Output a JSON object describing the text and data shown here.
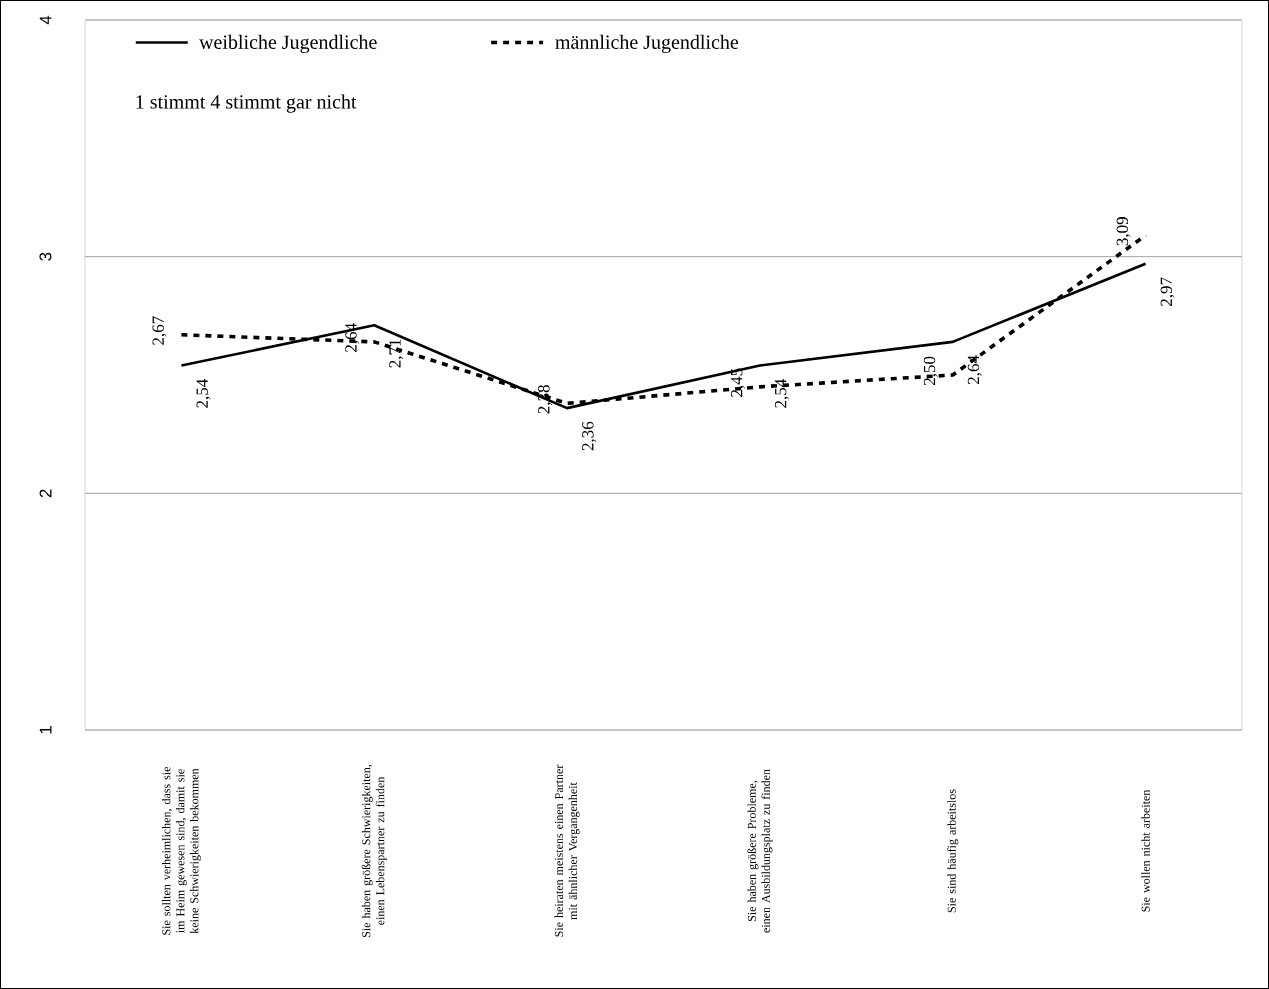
{
  "chart_data": {
    "type": "line",
    "categories": [
      "Sie sollten verheimlichen, dass sie im Heim gewesen sind, damit sie keine Schwierigkeiten bekommen",
      "Sie haben größere Schwierigkeiten, einen Lebenspartner zu finden",
      "Sie heiraten meistens einen Partner mit ähnlicher Vergangenheit",
      "Sie haben größere Probleme, einen Ausbildungsplatz zu finden",
      "Sie sind häufig arbeitslos",
      "Sie wollen nicht arbeiten"
    ],
    "series": [
      {
        "name": "weibliche Jugendliche",
        "color": "#000000",
        "line_style": "solid",
        "values": [
          2.54,
          2.71,
          2.36,
          2.54,
          2.64,
          2.97
        ],
        "value_labels": [
          "2,54",
          "2,71",
          "2,36",
          "2,54",
          "2,64",
          "2,97"
        ]
      },
      {
        "name": "männliche Jugendliche",
        "color": "#000000",
        "line_style": "dashed",
        "values": [
          2.67,
          2.64,
          2.38,
          2.45,
          2.5,
          3.09
        ],
        "value_labels": [
          "2,67",
          "2,64",
          "2,38",
          "2,45",
          "2,50",
          "3,09"
        ]
      }
    ],
    "ylim": [
      1,
      4
    ],
    "yticks": [
      1,
      2,
      3,
      4
    ],
    "grid": "y",
    "legend": "top left",
    "annotations": [
      "1  stimmt    4  stimmt gar nicht"
    ]
  }
}
